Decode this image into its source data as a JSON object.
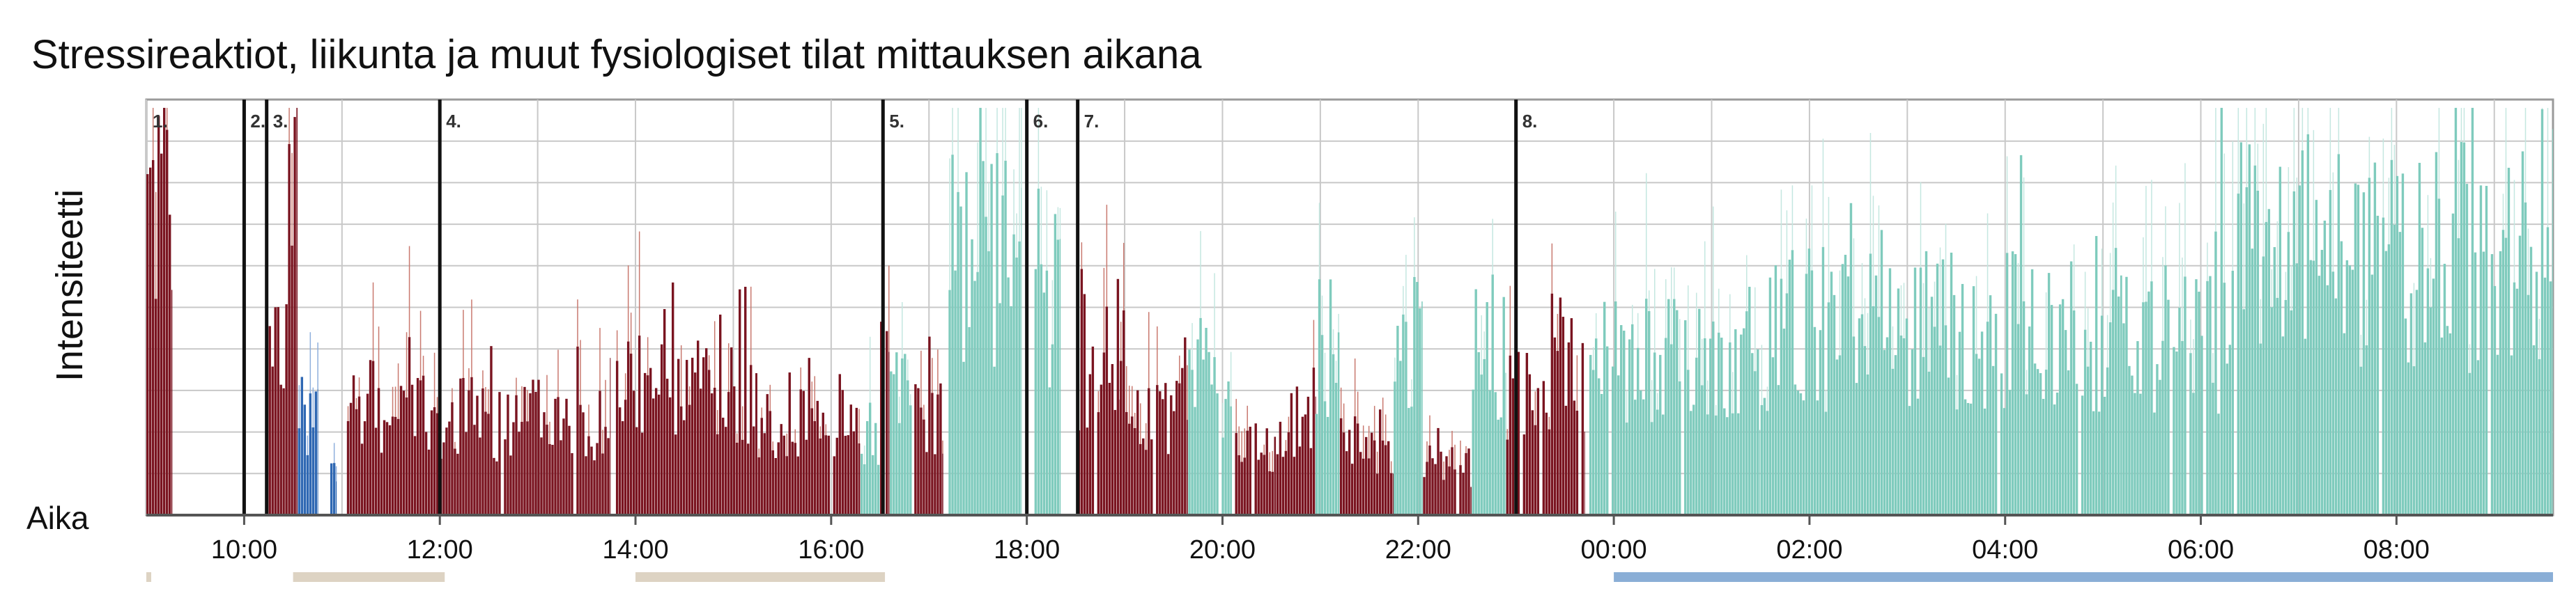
{
  "title": "Stressireaktiot, liikunta ja muut fysiologiset tilat mittauksen aikana",
  "colors": {
    "stress": "#7a1420",
    "stress_spike": "#c9796f",
    "recovery": "#7fcbbd",
    "recovery_spike": "#c4e7e0",
    "exercise": "#2f68b3",
    "exercise_light": "#8fb0dd",
    "work_bar": "#ddd3c3",
    "sleep_bar": "#8aaed6",
    "grid": "#c8c8c8",
    "marker": "#111111"
  },
  "chart_data": {
    "type": "bar",
    "title": "Stressireaktiot, liikunta ja muut fysiologiset tilat mittauksen aikana",
    "ylabel": "Intensiteetti",
    "xlabel": "Aika",
    "x_range_hours": [
      9.0,
      33.6
    ],
    "ylim": [
      0,
      10
    ],
    "grid": true,
    "xticks": [
      {
        "hour": 10,
        "label": "10:00"
      },
      {
        "hour": 12,
        "label": "12:00"
      },
      {
        "hour": 14,
        "label": "14:00"
      },
      {
        "hour": 16,
        "label": "16:00"
      },
      {
        "hour": 18,
        "label": "18:00"
      },
      {
        "hour": 20,
        "label": "20:00"
      },
      {
        "hour": 22,
        "label": "22:00"
      },
      {
        "hour": 24,
        "label": "00:00"
      },
      {
        "hour": 26,
        "label": "02:00"
      },
      {
        "hour": 28,
        "label": "04:00"
      },
      {
        "hour": 30,
        "label": "06:00"
      },
      {
        "hour": 32,
        "label": "08:00"
      }
    ],
    "markers": [
      {
        "label": "1.",
        "hour": 9.0
      },
      {
        "label": "2.",
        "hour": 10.0
      },
      {
        "label": "3.",
        "hour": 10.23
      },
      {
        "label": "4.",
        "hour": 12.0
      },
      {
        "label": "5.",
        "hour": 16.53
      },
      {
        "label": "6.",
        "hour": 18.0
      },
      {
        "label": "7.",
        "hour": 18.52
      },
      {
        "label": "8.",
        "hour": 23.0
      }
    ],
    "segments": [
      {
        "state": "stress",
        "start": 9.0,
        "end": 9.27,
        "level": 7.2
      },
      {
        "state": "stress",
        "start": 10.25,
        "end": 10.42,
        "level": 5.5
      },
      {
        "state": "stress",
        "start": 10.42,
        "end": 10.55,
        "level": 6.8
      },
      {
        "state": "exercise",
        "start": 10.55,
        "end": 10.75,
        "level": 2.3
      },
      {
        "state": "exercise",
        "start": 10.88,
        "end": 10.95,
        "level": 1.1
      },
      {
        "state": "stress",
        "start": 11.05,
        "end": 12.0,
        "level": 2.6
      },
      {
        "state": "stress",
        "start": 12.0,
        "end": 13.75,
        "level": 2.3
      },
      {
        "state": "stress",
        "start": 13.8,
        "end": 15.25,
        "level": 3.0
      },
      {
        "state": "stress",
        "start": 15.25,
        "end": 16.3,
        "level": 2.4
      },
      {
        "state": "recovery",
        "start": 16.3,
        "end": 16.5,
        "level": 2.0
      },
      {
        "state": "stress",
        "start": 16.5,
        "end": 16.6,
        "level": 3.0
      },
      {
        "state": "recovery",
        "start": 16.6,
        "end": 16.85,
        "level": 3.0
      },
      {
        "state": "stress",
        "start": 16.85,
        "end": 17.15,
        "level": 2.4
      },
      {
        "state": "recovery",
        "start": 17.2,
        "end": 17.95,
        "level": 6.2
      },
      {
        "state": "recovery",
        "start": 18.05,
        "end": 18.35,
        "level": 5.3
      },
      {
        "state": "stress",
        "start": 18.52,
        "end": 18.95,
        "level": 3.5
      },
      {
        "state": "stress",
        "start": 18.95,
        "end": 19.65,
        "level": 2.6
      },
      {
        "state": "recovery",
        "start": 19.65,
        "end": 20.1,
        "level": 3.3
      },
      {
        "state": "stress",
        "start": 20.1,
        "end": 20.55,
        "level": 1.6
      },
      {
        "state": "stress",
        "start": 20.55,
        "end": 20.95,
        "level": 2.5
      },
      {
        "state": "recovery",
        "start": 20.95,
        "end": 21.2,
        "level": 4.0
      },
      {
        "state": "stress",
        "start": 21.2,
        "end": 21.75,
        "level": 1.7
      },
      {
        "state": "recovery",
        "start": 21.75,
        "end": 22.05,
        "level": 4.6
      },
      {
        "state": "stress",
        "start": 22.05,
        "end": 22.55,
        "level": 1.2
      },
      {
        "state": "recovery",
        "start": 22.55,
        "end": 22.9,
        "level": 4.0
      },
      {
        "state": "stress",
        "start": 22.9,
        "end": 23.7,
        "level": 2.9
      },
      {
        "state": "recovery",
        "start": 23.75,
        "end": 25.5,
        "level": 3.7
      },
      {
        "state": "recovery",
        "start": 25.5,
        "end": 29.2,
        "level": 4.5
      },
      {
        "state": "recovery",
        "start": 29.2,
        "end": 30.2,
        "level": 4.1
      },
      {
        "state": "recovery",
        "start": 30.2,
        "end": 33.6,
        "level": 6.2
      }
    ],
    "activity_bars": [
      {
        "type": "work",
        "start": 9.0,
        "end": 9.05
      },
      {
        "type": "work",
        "start": 10.5,
        "end": 12.05
      },
      {
        "type": "work",
        "start": 14.0,
        "end": 16.55
      },
      {
        "type": "sleep",
        "start": 24.0,
        "end": 33.6
      }
    ]
  }
}
